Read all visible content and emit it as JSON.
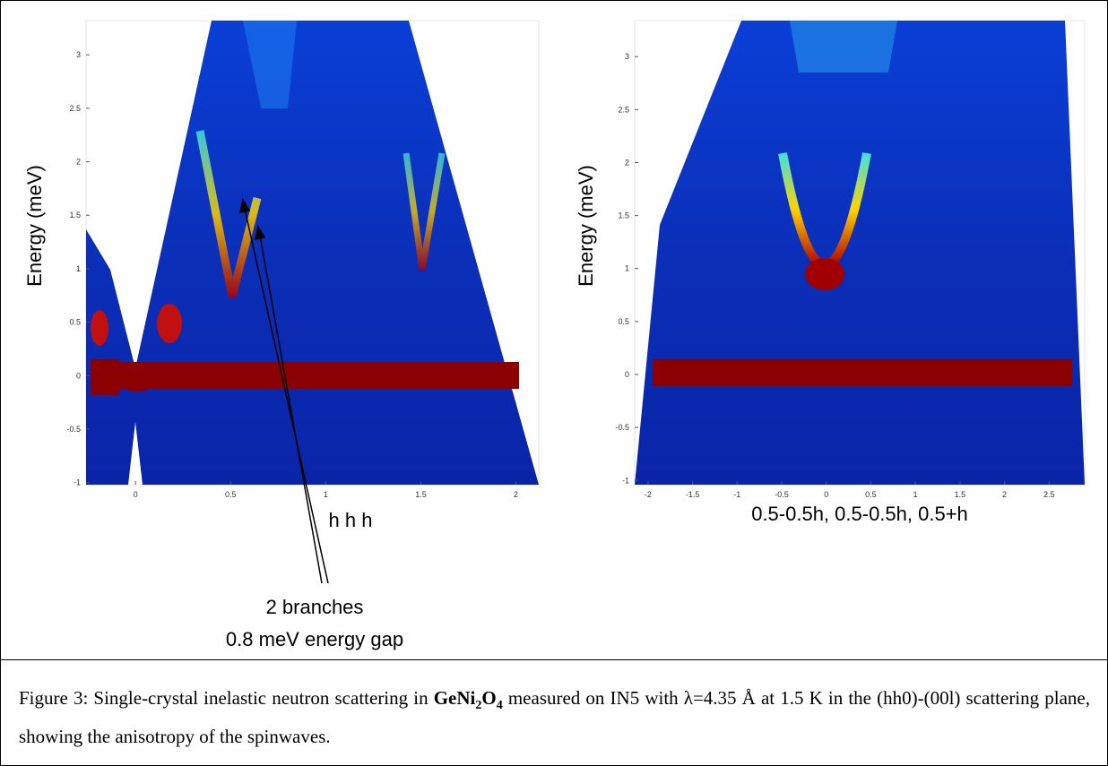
{
  "panels": [
    {
      "ylabel": "Energy (meV)",
      "xlabel": "h h h",
      "xlim": [
        -0.26,
        2.12
      ],
      "ylim": [
        -1.02,
        3.32
      ],
      "xticks": [
        0,
        0.5,
        1,
        1.5,
        2
      ],
      "yticks": [
        -1,
        -0.5,
        0,
        0.5,
        1,
        1.5,
        2,
        2.5,
        3
      ]
    },
    {
      "ylabel": "Energy (meV)",
      "xlabel": "0.5-0.5h, 0.5-0.5h, 0.5+h",
      "xlim": [
        -2.15,
        2.9
      ],
      "ylim": [
        -1.04,
        3.34
      ],
      "xticks": [
        -2,
        -1.5,
        -1,
        -0.5,
        0,
        0.5,
        1,
        1.5,
        2,
        2.5
      ],
      "yticks": [
        -1,
        -0.5,
        0,
        0.5,
        1,
        1.5,
        2,
        2.5,
        3
      ]
    }
  ],
  "annotation": {
    "lines": [
      "2 branches",
      "0.8 meV energy gap"
    ]
  },
  "caption": {
    "lead": "Figure 3: Single-crystal inelastic neutron scattering in ",
    "formula": [
      "GeNi",
      "2",
      "O",
      "4"
    ],
    "rest": " measured on IN5 with λ=4.35 Å at 1.5 K in the (hh0)-(00l) scattering plane, showing the anisotropy of the spinwaves."
  }
}
